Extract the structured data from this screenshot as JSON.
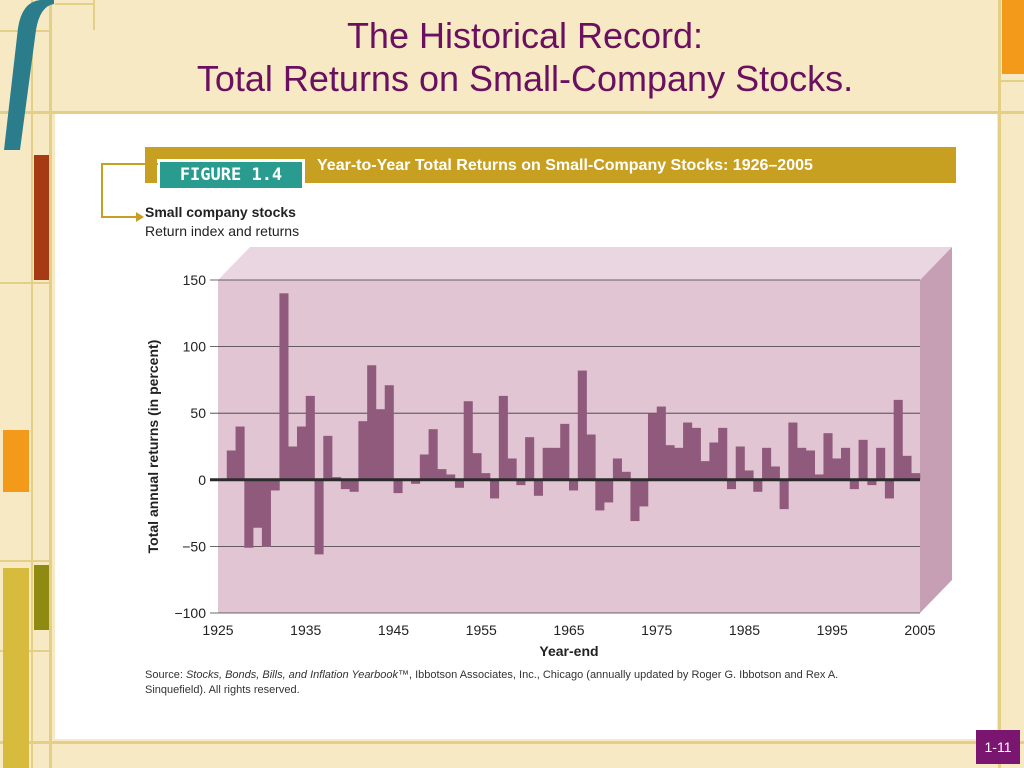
{
  "slide": {
    "title_line1": "The Historical Record:",
    "title_line2": "Total Returns on Small-Company Stocks.",
    "page_number": "1-11"
  },
  "figure": {
    "badge": "FIGURE 1.4",
    "heading": "Year-to-Year Total Returns on Small-Company Stocks: 1926–2005",
    "subtitle_bold": "Small company stocks",
    "subtitle": "Return index and returns",
    "source_prefix": "Source: ",
    "source_italic": "Stocks, Bonds, Bills, and Inflation Yearbook",
    "source_rest": "™, Ibbotson Associates, Inc., Chicago (annually updated by Roger G. Ibbotson and Rex A. Sinquefield). All rights reserved."
  },
  "colors": {
    "bar": "#8f5a7b",
    "plot_bg": "#e2c5d3",
    "plot_top": "#ead6e0",
    "plot_side": "#c79fb5",
    "zero_line": "#2b2b2b",
    "title": "#6b1060",
    "figure_bar": "#c8a021",
    "badge": "#2a9b8f",
    "page_badge": "#7a1670"
  },
  "chart_data": {
    "type": "bar",
    "xlabel": "Year-end",
    "ylabel": "Total annual returns (in percent)",
    "ylim": [
      -100,
      150
    ],
    "xlim": [
      1925,
      2005
    ],
    "yticks": [
      -100,
      -50,
      0,
      50,
      100,
      150
    ],
    "xticks": [
      1925,
      1935,
      1945,
      1955,
      1965,
      1975,
      1985,
      1995,
      2005
    ],
    "grid": true,
    "series": [
      {
        "x": [
          1926,
          1927,
          1928,
          1929,
          1930,
          1931,
          1932,
          1933,
          1934,
          1935,
          1936,
          1937,
          1938,
          1939,
          1940,
          1941,
          1942,
          1943,
          1944,
          1945,
          1946,
          1947,
          1948,
          1949,
          1950,
          1951,
          1952,
          1953,
          1954,
          1955,
          1956,
          1957,
          1958,
          1959,
          1960,
          1961,
          1962,
          1963,
          1964,
          1965,
          1966,
          1967,
          1968,
          1969,
          1970,
          1971,
          1972,
          1973,
          1974,
          1975,
          1976,
          1977,
          1978,
          1979,
          1980,
          1981,
          1982,
          1983,
          1984,
          1985,
          1986,
          1987,
          1988,
          1989,
          1990,
          1991,
          1992,
          1993,
          1994,
          1995,
          1996,
          1997,
          1998,
          1999,
          2000,
          2001,
          2002,
          2003,
          2004,
          2005
        ],
        "values": [
          0.3,
          22,
          40,
          -51,
          -36,
          -50,
          -8,
          140,
          25,
          40,
          63,
          -56,
          33,
          2,
          -7,
          -9,
          44,
          86,
          53,
          71,
          -10,
          1,
          -3,
          19,
          38,
          8,
          4,
          -6,
          59,
          20,
          5,
          -14,
          63,
          16,
          -4,
          32,
          -12,
          24,
          24,
          42,
          -8,
          82,
          34,
          -23,
          -17,
          16,
          6,
          -31,
          -20,
          50,
          55,
          26,
          24,
          43,
          39,
          14,
          28,
          39,
          -7,
          25,
          7,
          -9,
          24,
          10,
          -22,
          43,
          24,
          22,
          4,
          35,
          16,
          24,
          -7,
          30,
          -4,
          24,
          -14,
          60,
          18,
          5
        ]
      }
    ]
  }
}
